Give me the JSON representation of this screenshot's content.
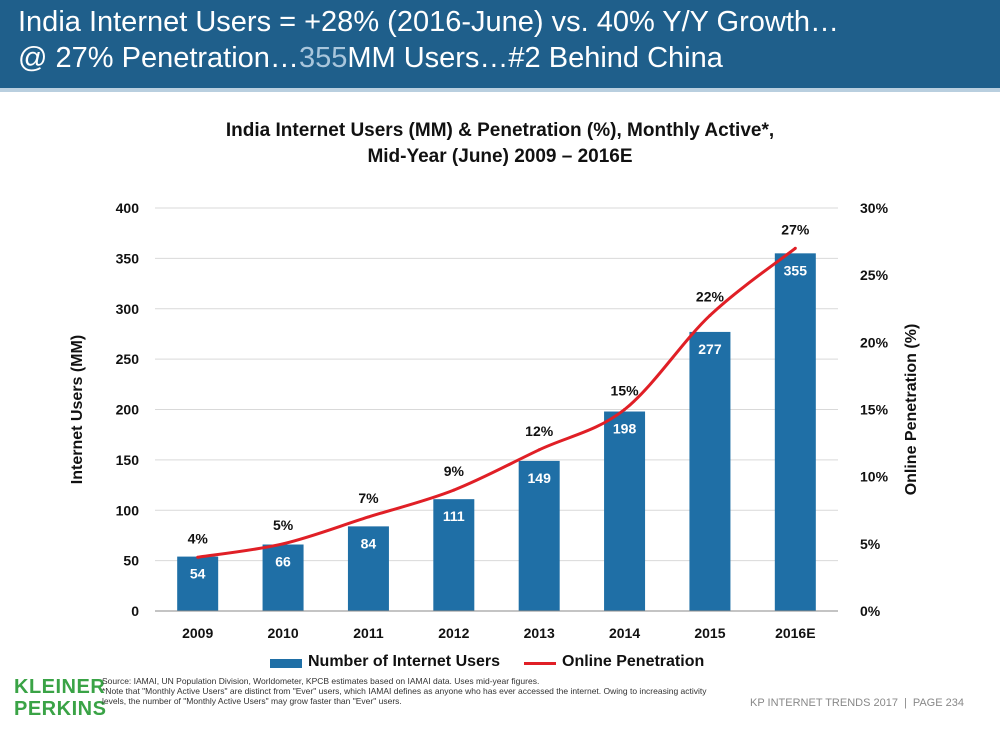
{
  "header": {
    "line1": "India Internet Users = +28% (2016-June) vs. 40% Y/Y Growth…",
    "line2_prefix": "@ 27% Penetration…",
    "line2_highlight": "355",
    "line2_suffix": "MM Users…#2 Behind China"
  },
  "colors": {
    "header_bg": "#1f5f8b",
    "bar": "#1f6fa6",
    "line": "#e01f26",
    "logo": "#3aa346"
  },
  "chart_data": {
    "type": "bar",
    "title_line1": "India Internet Users (MM) & Penetration (%), Monthly Active*,",
    "title_line2": "Mid-Year (June) 2009 – 2016E",
    "categories": [
      "2009",
      "2010",
      "2011",
      "2012",
      "2013",
      "2014",
      "2015",
      "2016E"
    ],
    "series": [
      {
        "name": "Number of Internet Users",
        "type": "bar",
        "axis": "left",
        "values": [
          54,
          66,
          84,
          111,
          149,
          198,
          277,
          355
        ]
      },
      {
        "name": "Online Penetration",
        "type": "line",
        "axis": "right",
        "values": [
          4,
          5,
          7,
          9,
          12,
          15,
          22,
          27
        ]
      }
    ],
    "bar_labels": [
      "54",
      "66",
      "84",
      "111",
      "149",
      "198",
      "277",
      "355"
    ],
    "line_labels": [
      "4%",
      "5%",
      "7%",
      "9%",
      "12%",
      "15%",
      "22%",
      "27%"
    ],
    "ylabel_left": "Internet Users (MM)",
    "ylabel_right": "Online Penetration (%)",
    "ylim_left": [
      0,
      400
    ],
    "ylim_right": [
      0,
      30
    ],
    "yticks_left": [
      "0",
      "50",
      "100",
      "150",
      "200",
      "250",
      "300",
      "350",
      "400"
    ],
    "yticks_right": [
      "0%",
      "5%",
      "10%",
      "15%",
      "20%",
      "25%",
      "30%"
    ],
    "grid": true,
    "legend": [
      "Number of Internet Users",
      "Online Penetration"
    ]
  },
  "footer": {
    "logo_line1": "KLEINER",
    "logo_line2": "PERKINS",
    "source_line1": "Source: IAMAI, UN Population Division, Worldometer, KPCB estimates based on IAMAI data. Uses mid-year figures.",
    "source_line2": "*Note that \"Monthly Active Users\" are distinct from \"Ever\" users, which IAMAI defines as anyone who has ever accessed the internet. Owing to increasing activity levels, the number of \"Monthly Active Users\" may grow faster than \"Ever\" users.",
    "report": "KP INTERNET TRENDS 2017",
    "separator": "|",
    "page": "PAGE 234"
  }
}
